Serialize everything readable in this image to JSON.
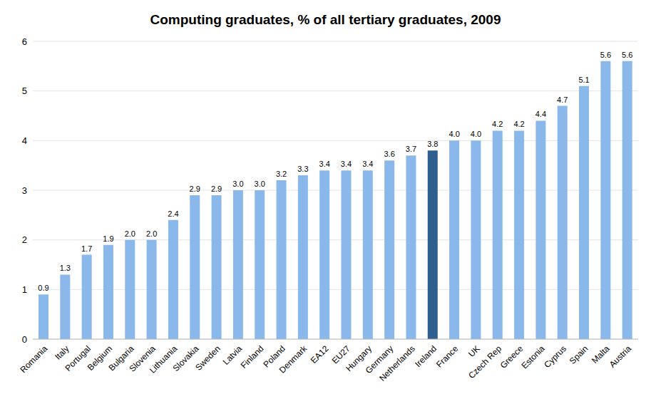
{
  "chart_data": {
    "type": "bar",
    "title": "Computing graduates, % of all tertiary graduates, 2009",
    "categories": [
      "Romania",
      "Italy",
      "Portugal",
      "Belgium",
      "Bulgaria",
      "Slovenia",
      "Lithuania",
      "Slovakia",
      "Sweden",
      "Latvia",
      "Finland",
      "Poland",
      "Denmark",
      "EA12",
      "EU27",
      "Hungary",
      "Germany",
      "Netherlands",
      "Ireland",
      "France",
      "UK",
      "Czech Rep",
      "Greece",
      "Estonia",
      "Cyprus",
      "Spain",
      "Malta",
      "Austria"
    ],
    "values": [
      0.9,
      1.3,
      1.7,
      1.9,
      2.0,
      2.0,
      2.4,
      2.9,
      2.9,
      3.0,
      3.0,
      3.2,
      3.3,
      3.4,
      3.4,
      3.4,
      3.6,
      3.7,
      3.8,
      4.0,
      4.0,
      4.2,
      4.2,
      4.4,
      4.7,
      5.1,
      5.6,
      5.6
    ],
    "value_labels": [
      "0.9",
      "1.3",
      "1.7",
      "1.9",
      "2.0",
      "2.0",
      "2.4",
      "2.9",
      "2.9",
      "3.0",
      "3.0",
      "3.2",
      "3.3",
      "3.4",
      "3.4",
      "3.4",
      "3.6",
      "3.7",
      "3.8",
      "4.0",
      "4.0",
      "4.2",
      "4.2",
      "4.4",
      "4.7",
      "5.1",
      "5.6",
      "5.6"
    ],
    "colors": [
      "#8ab8ea",
      "#8ab8ea",
      "#8ab8ea",
      "#8ab8ea",
      "#8ab8ea",
      "#8ab8ea",
      "#8ab8ea",
      "#8ab8ea",
      "#8ab8ea",
      "#8ab8ea",
      "#8ab8ea",
      "#8ab8ea",
      "#8ab8ea",
      "#8ab8ea",
      "#8ab8ea",
      "#8ab8ea",
      "#8ab8ea",
      "#8ab8ea",
      "#2e5f8f",
      "#8ab8ea",
      "#8ab8ea",
      "#8ab8ea",
      "#8ab8ea",
      "#8ab8ea",
      "#8ab8ea",
      "#8ab8ea",
      "#8ab8ea",
      "#8ab8ea"
    ],
    "ylim": [
      0,
      6
    ],
    "yticks": [
      0,
      1,
      2,
      3,
      4,
      5,
      6
    ],
    "grid": true,
    "data_labels": true
  }
}
